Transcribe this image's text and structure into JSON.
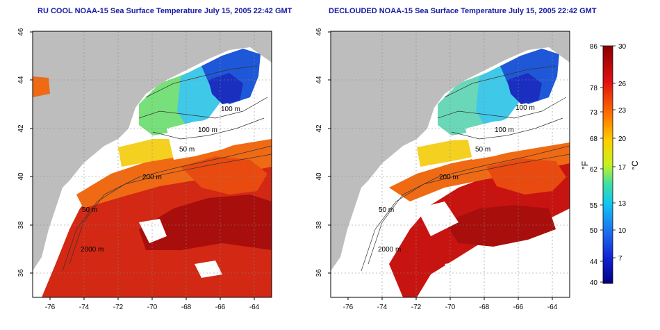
{
  "left_panel": {
    "title": "RU COOL NOAA-15 Sea Surface Temperature July 15, 2005 22:42 GMT"
  },
  "right_panel": {
    "title": "DECLOUDED NOAA-15 Sea Surface Temperature July 15, 2005 22:42 GMT"
  },
  "axes": {
    "lon_ticks": [
      "-76",
      "-74",
      "-72",
      "-70",
      "-68",
      "-66",
      "-64"
    ],
    "lat_ticks": [
      "36",
      "38",
      "40",
      "42",
      "44",
      "46"
    ]
  },
  "contour_labels": [
    "100 m",
    "100 m",
    "50 m",
    "200 m",
    "50 m",
    "2000 m"
  ],
  "colorbar": {
    "fahrenheit_ticks": [
      "86",
      "78",
      "73",
      "68",
      "62",
      "55",
      "50",
      "44",
      "40"
    ],
    "celsius_ticks": [
      "30",
      "26",
      "23",
      "20",
      "17",
      "13",
      "10",
      "7"
    ],
    "fahrenheit_unit": "°F",
    "celsius_unit": "°C"
  },
  "colors": {
    "land": "#bdbdbd",
    "warm": "#c81410",
    "cool": "#1e58d8",
    "title": "#1a1aa6"
  }
}
